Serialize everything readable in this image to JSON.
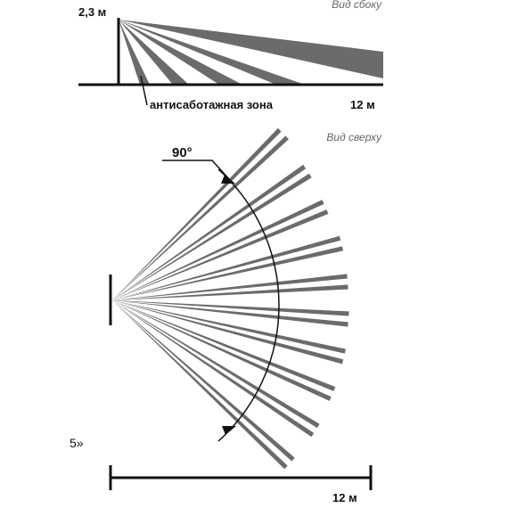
{
  "side_view": {
    "title": "Вид сбоку",
    "height_label": "2,3 м",
    "zone_label": "антисаботажная зона",
    "range_label": "12 м"
  },
  "top_view": {
    "title": "Вид сверху",
    "angle_label": "90°",
    "range_label": "12 м",
    "fragment_text": "5»"
  },
  "colors": {
    "beam": "#6b6b6b",
    "line": "#111111",
    "background": "#ffffff"
  }
}
